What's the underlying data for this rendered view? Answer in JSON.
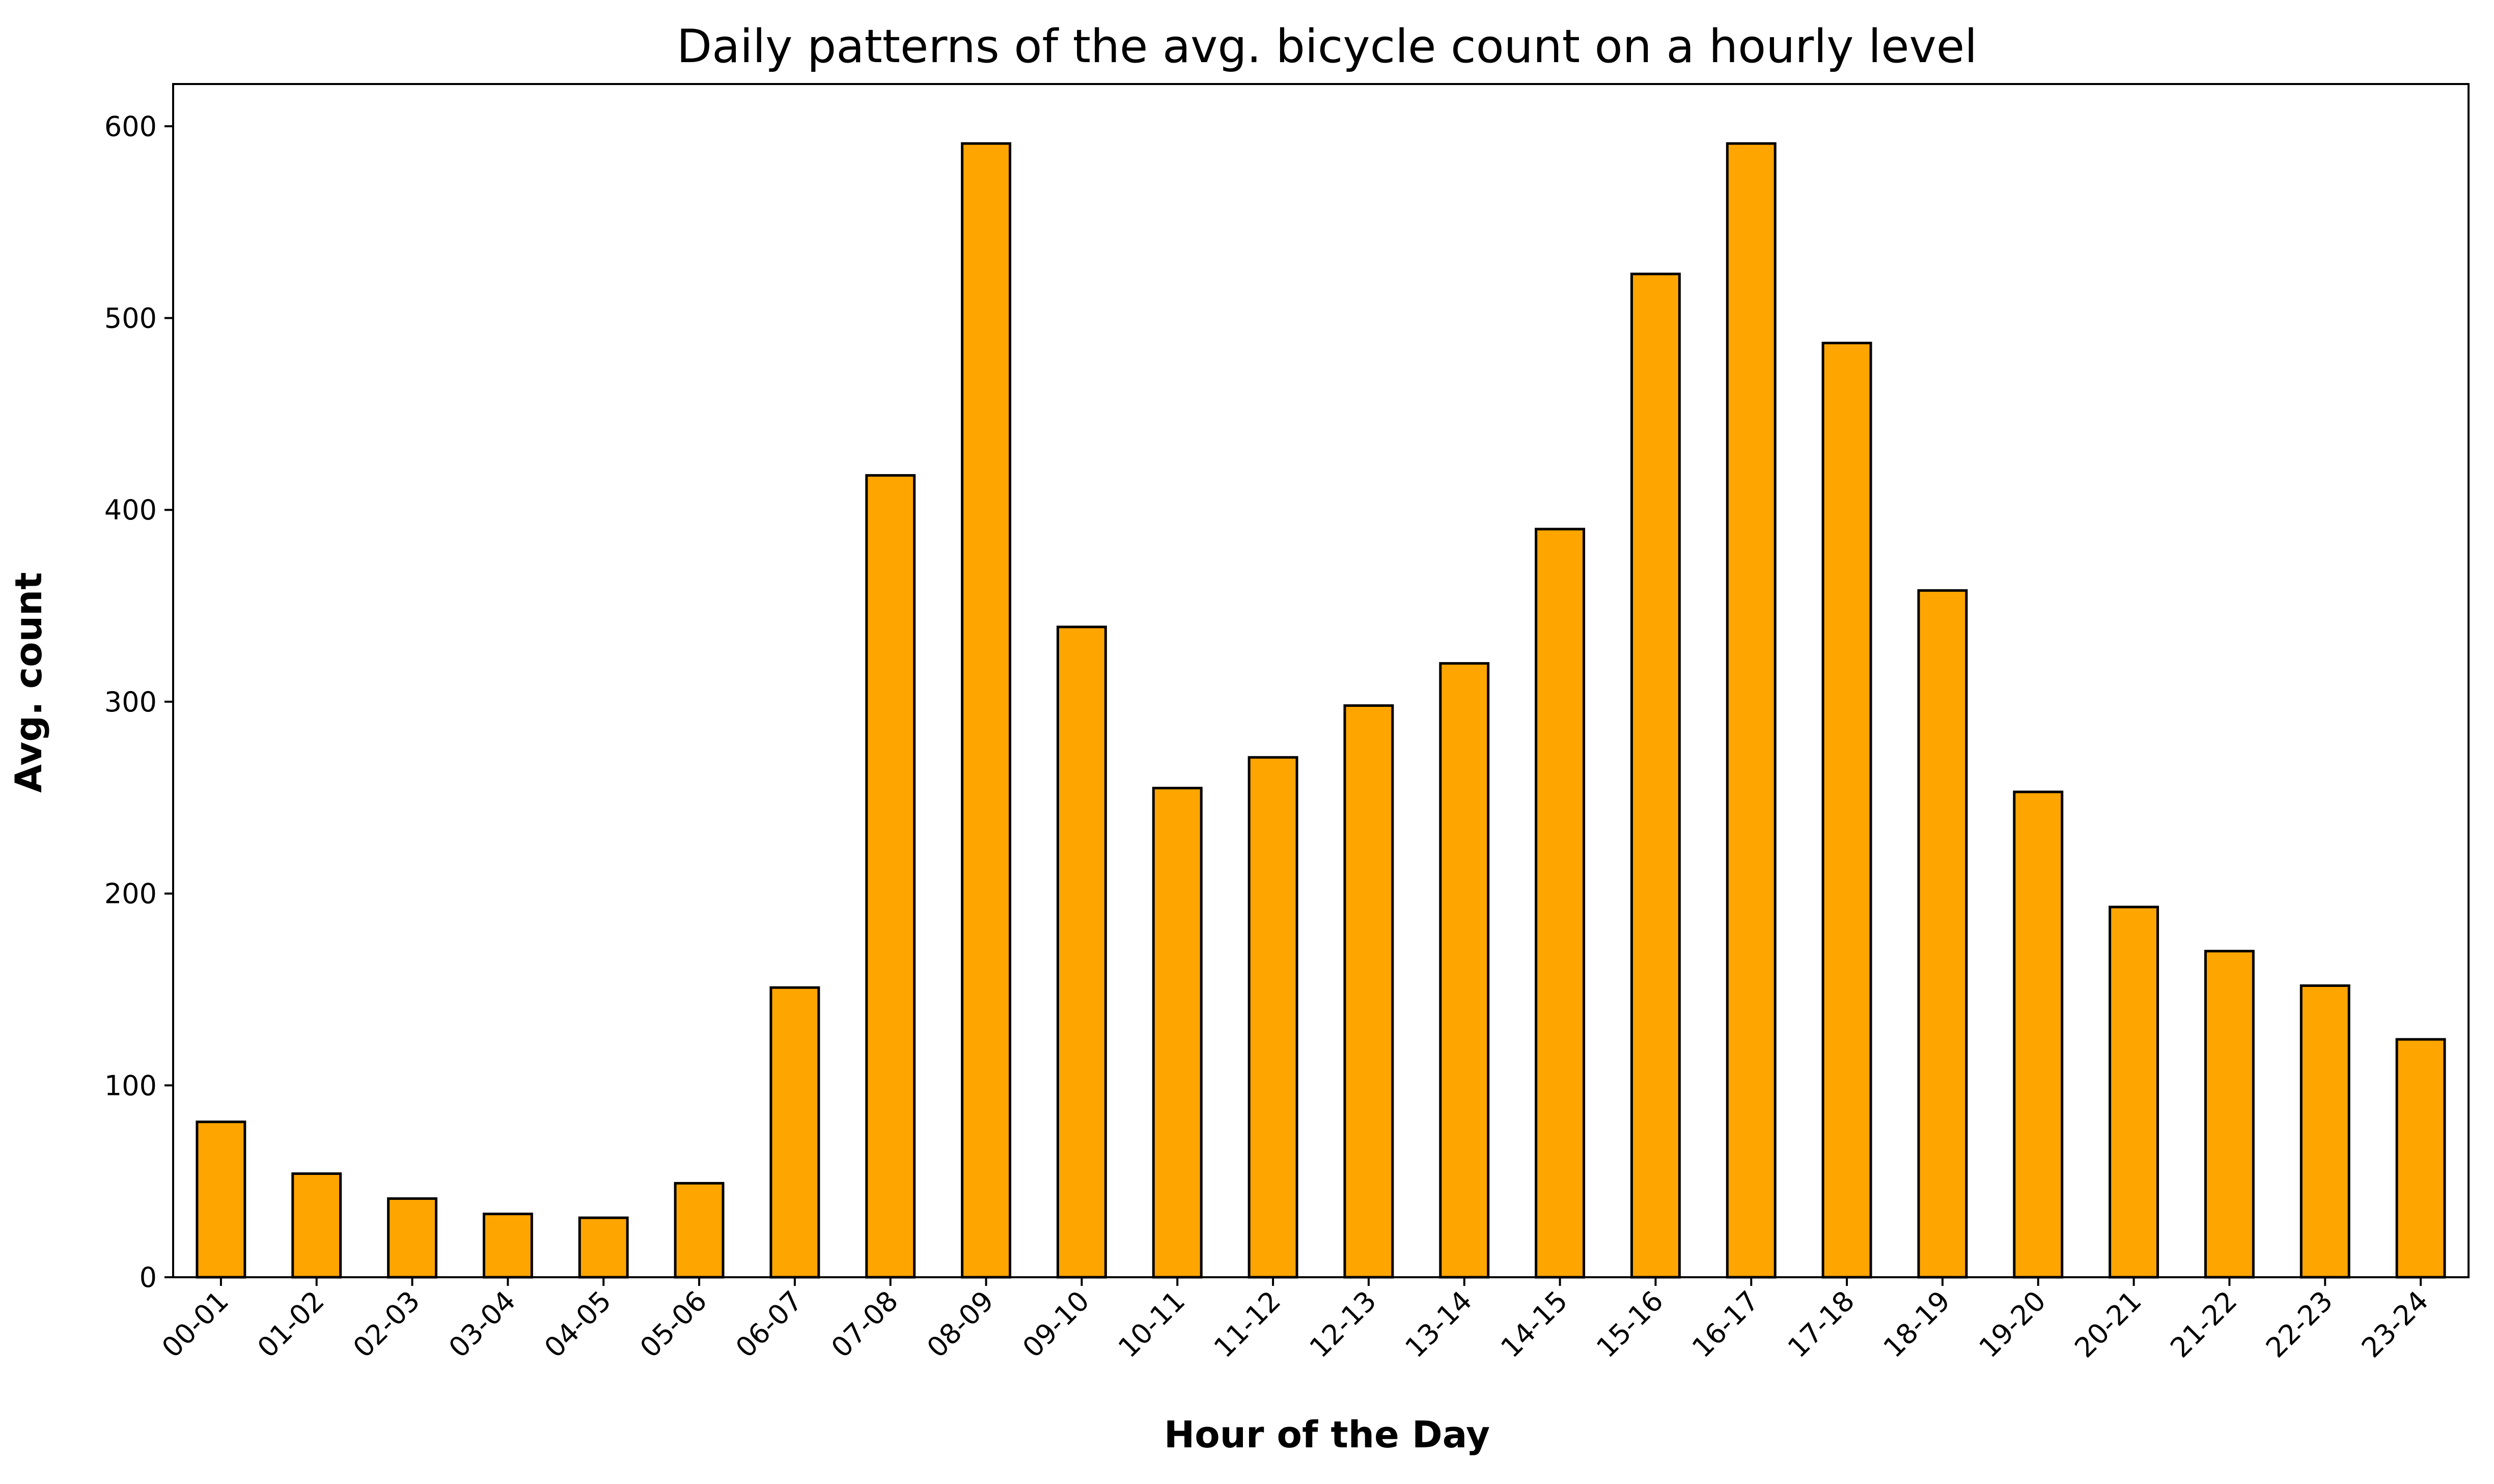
{
  "chart_data": {
    "type": "bar",
    "title": "Daily patterns of the avg. bicycle count on a hourly level",
    "xlabel": "Hour of the Day",
    "ylabel": "Avg. count",
    "categories": [
      "00-01",
      "01-02",
      "02-03",
      "03-04",
      "04-05",
      "05-06",
      "06-07",
      "07-08",
      "08-09",
      "09-10",
      "10-11",
      "11-12",
      "12-13",
      "13-14",
      "14-15",
      "15-16",
      "16-17",
      "17-18",
      "18-19",
      "19-20",
      "20-21",
      "21-22",
      "22-23",
      "23-24"
    ],
    "values": [
      81,
      54,
      41,
      33,
      31,
      49,
      151,
      418,
      591,
      339,
      255,
      271,
      298,
      320,
      390,
      523,
      591,
      487,
      358,
      253,
      193,
      170,
      152,
      124
    ],
    "ylim": [
      0,
      622
    ],
    "yticks": [
      0,
      100,
      200,
      300,
      400,
      500,
      600
    ],
    "bar_color": "#ffa500",
    "edge_color": "#000000",
    "grid": false,
    "legend": "none"
  }
}
